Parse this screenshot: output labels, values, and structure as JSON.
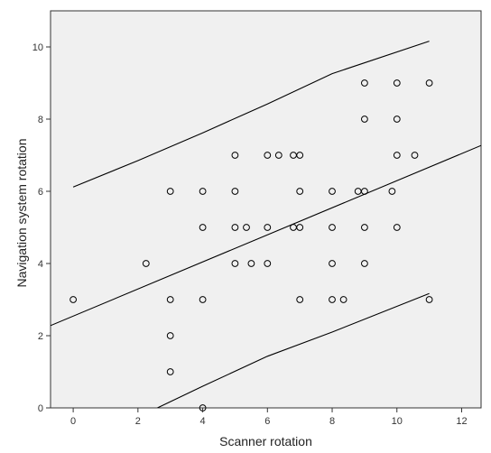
{
  "chart_data": {
    "type": "scatter",
    "title": "",
    "xlabel": "Scanner rotation",
    "ylabel": "Navigation system rotation",
    "xlim": [
      -0.7,
      12.6
    ],
    "ylim": [
      0,
      11
    ],
    "xticks": [
      0,
      2,
      4,
      6,
      8,
      10,
      12
    ],
    "yticks": [
      0,
      2,
      4,
      6,
      8,
      10
    ],
    "grid": false,
    "colors": {
      "background": "#f0f0f0",
      "axis": "#333333",
      "point": "#000000",
      "line": "#000000"
    },
    "points": [
      {
        "x": 0,
        "y": 3
      },
      {
        "x": 2.25,
        "y": 4
      },
      {
        "x": 3,
        "y": 6
      },
      {
        "x": 3,
        "y": 3
      },
      {
        "x": 3,
        "y": 2
      },
      {
        "x": 3,
        "y": 1
      },
      {
        "x": 4,
        "y": 6
      },
      {
        "x": 4,
        "y": 5
      },
      {
        "x": 4,
        "y": 3
      },
      {
        "x": 4,
        "y": 0
      },
      {
        "x": 5,
        "y": 7
      },
      {
        "x": 5,
        "y": 6
      },
      {
        "x": 5,
        "y": 5
      },
      {
        "x": 5,
        "y": 4
      },
      {
        "x": 5.35,
        "y": 5
      },
      {
        "x": 5.5,
        "y": 4
      },
      {
        "x": 6,
        "y": 7
      },
      {
        "x": 6,
        "y": 5
      },
      {
        "x": 6,
        "y": 4
      },
      {
        "x": 6.35,
        "y": 7
      },
      {
        "x": 6.8,
        "y": 7
      },
      {
        "x": 6.8,
        "y": 5
      },
      {
        "x": 7,
        "y": 7
      },
      {
        "x": 7,
        "y": 6
      },
      {
        "x": 7,
        "y": 5
      },
      {
        "x": 7,
        "y": 3
      },
      {
        "x": 8,
        "y": 6
      },
      {
        "x": 8,
        "y": 5
      },
      {
        "x": 8,
        "y": 4
      },
      {
        "x": 8,
        "y": 3
      },
      {
        "x": 8.35,
        "y": 3
      },
      {
        "x": 8.8,
        "y": 6
      },
      {
        "x": 9,
        "y": 9
      },
      {
        "x": 9,
        "y": 8
      },
      {
        "x": 9,
        "y": 6
      },
      {
        "x": 9,
        "y": 5
      },
      {
        "x": 9,
        "y": 4
      },
      {
        "x": 9.85,
        "y": 6
      },
      {
        "x": 10,
        "y": 9
      },
      {
        "x": 10,
        "y": 8
      },
      {
        "x": 10,
        "y": 7
      },
      {
        "x": 10,
        "y": 5
      },
      {
        "x": 10.55,
        "y": 7
      },
      {
        "x": 11,
        "y": 9
      },
      {
        "x": 11,
        "y": 3
      }
    ],
    "lines": [
      {
        "role": "fit",
        "points": [
          [
            -0.7,
            2.28
          ],
          [
            12.6,
            7.27
          ]
        ]
      },
      {
        "role": "upper",
        "points": [
          [
            0,
            6.12
          ],
          [
            2,
            6.85
          ],
          [
            4,
            7.62
          ],
          [
            6,
            8.42
          ],
          [
            8,
            9.26
          ],
          [
            11,
            10.16
          ]
        ]
      },
      {
        "role": "lower",
        "points": [
          [
            2.6,
            0
          ],
          [
            4,
            0.6
          ],
          [
            6,
            1.43
          ],
          [
            8,
            2.1
          ],
          [
            11,
            3.17
          ]
        ]
      }
    ]
  }
}
